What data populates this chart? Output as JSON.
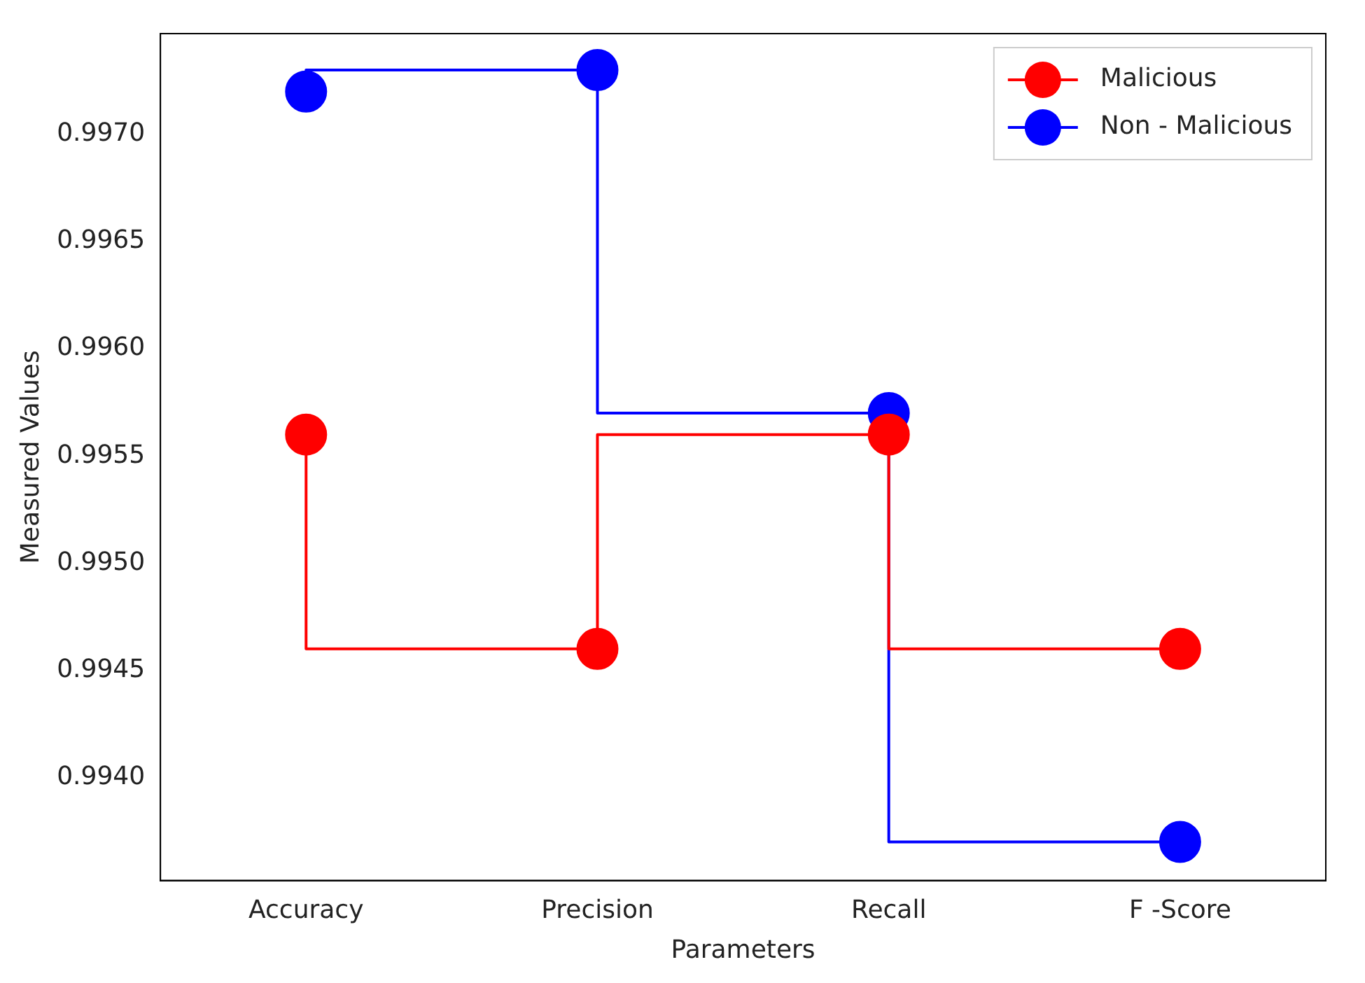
{
  "chart_data": {
    "type": "step",
    "xlabel": "Parameters",
    "ylabel": "Measured Values",
    "categories": [
      "Accuracy",
      "Precision",
      "Recall",
      "F -Score"
    ],
    "series": [
      {
        "name": "Malicious",
        "color": "#ff0000",
        "values": [
          0.9956,
          0.9946,
          0.9956,
          0.9946
        ]
      },
      {
        "name": "Non - Malicious",
        "color": "#0000ff",
        "values": [
          0.9972,
          0.9973,
          0.9957,
          0.9937
        ]
      }
    ],
    "ylim": [
      0.99352,
      0.99747
    ],
    "yticks": [
      {
        "value": 0.994,
        "label": "0.9940"
      },
      0.9945,
      {
        "value": 0.995,
        "label": "0.9950"
      },
      0.9955,
      {
        "value": 0.996,
        "label": "0.9960"
      },
      0.9965,
      {
        "value": 0.997,
        "label": "0.9970"
      }
    ],
    "grid": false,
    "legend": "top right",
    "marker": "circle",
    "line_style": "solid"
  }
}
